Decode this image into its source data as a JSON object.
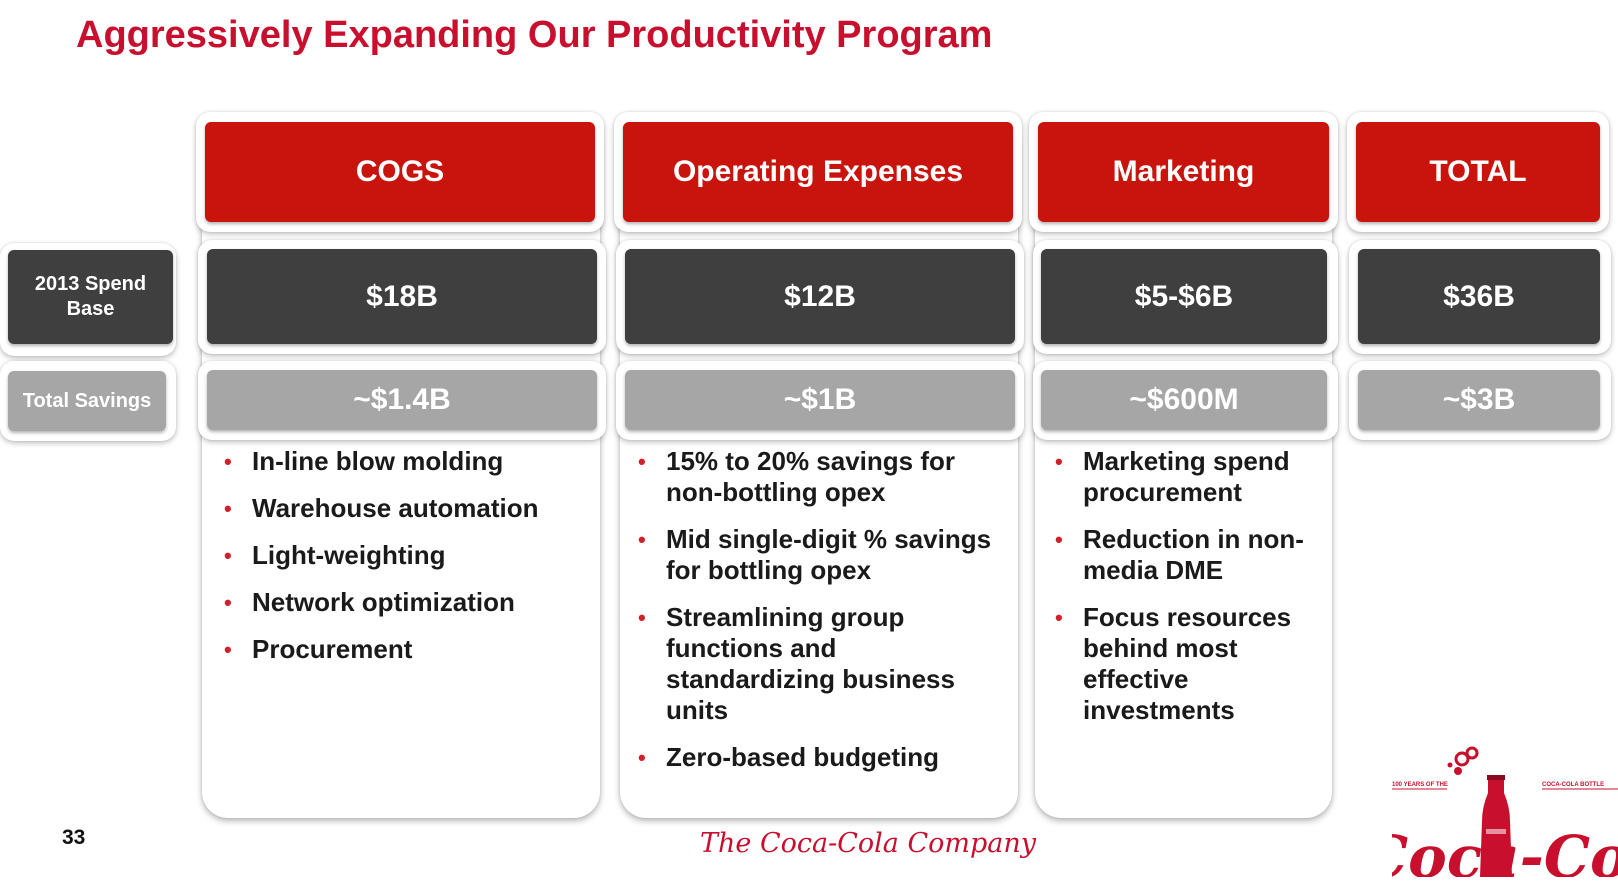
{
  "title": "Aggressively Expanding Our Productivity Program",
  "row_labels": {
    "spend": "2013 Spend Base",
    "savings": "Total Savings"
  },
  "columns": [
    {
      "header": "COGS",
      "spend": "$18B",
      "savings": "~$1.4B",
      "bullets": [
        "In-line blow molding",
        "Warehouse automation",
        "Light-weighting",
        "Network optimization",
        "Procurement"
      ]
    },
    {
      "header": "Operating Expenses",
      "spend": "$12B",
      "savings": "~$1B",
      "bullets": [
        "15% to 20% savings for non-bottling opex",
        "Mid single-digit % savings for bottling opex",
        "Streamlining group functions and standardizing business units",
        "Zero-based budgeting"
      ]
    },
    {
      "header": "Marketing",
      "spend": "$5-$6B",
      "savings": "~$600M",
      "bullets": [
        "Marketing spend procurement",
        "Reduction in non-media DME",
        "Focus resources behind most effective investments"
      ]
    },
    {
      "header": "TOTAL",
      "spend": "$36B",
      "savings": "~$3B",
      "bullets": []
    }
  ],
  "footer": {
    "page_number": "33",
    "company_wordmark": "The Coca-Cola Company",
    "badge_left": "100 YEARS OF THE",
    "badge_right": "COCA-COLA BOTTLE",
    "brand_script": "Coca-Cola"
  },
  "colors": {
    "brand_red": "#c8140c",
    "dark_grey": "#3f3f3f",
    "light_grey": "#a6a6a6"
  }
}
